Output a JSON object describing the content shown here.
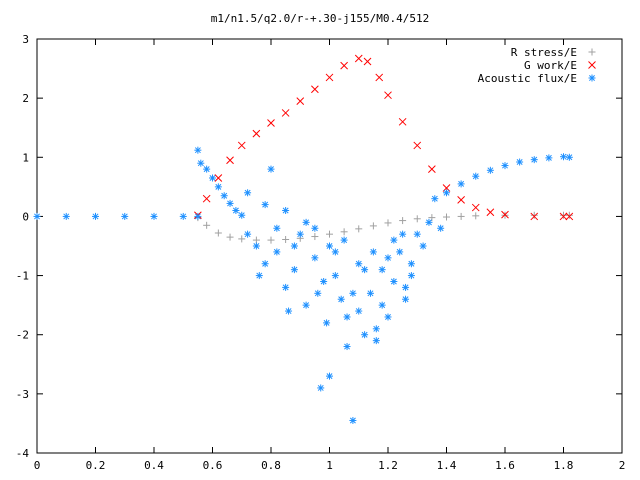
{
  "chart_data": {
    "type": "scatter",
    "title": "m1/n1.5/q2.0/r-+.30-j155/M0.4/512",
    "xlabel": "",
    "ylabel": "",
    "xlim": [
      0,
      2
    ],
    "ylim": [
      -4,
      3
    ],
    "xticks": [
      "0",
      "0.2",
      "0.4",
      "0.6",
      "0.8",
      "1",
      "1.2",
      "1.4",
      "1.6",
      "1.8",
      "2"
    ],
    "yticks": [
      "-4",
      "-3",
      "-2",
      "-1",
      "0",
      "1",
      "2",
      "3"
    ],
    "grid": false,
    "legend_position": "top-right",
    "series": [
      {
        "name": "R stress/E",
        "marker": "plus",
        "color": "#a0a0a0",
        "points": [
          [
            0.55,
            -0.02
          ],
          [
            0.58,
            -0.15
          ],
          [
            0.62,
            -0.28
          ],
          [
            0.66,
            -0.35
          ],
          [
            0.7,
            -0.38
          ],
          [
            0.75,
            -0.4
          ],
          [
            0.8,
            -0.4
          ],
          [
            0.85,
            -0.39
          ],
          [
            0.9,
            -0.37
          ],
          [
            0.95,
            -0.34
          ],
          [
            1.0,
            -0.3
          ],
          [
            1.05,
            -0.26
          ],
          [
            1.1,
            -0.21
          ],
          [
            1.15,
            -0.16
          ],
          [
            1.2,
            -0.11
          ],
          [
            1.25,
            -0.07
          ],
          [
            1.3,
            -0.04
          ],
          [
            1.35,
            -0.02
          ],
          [
            1.4,
            -0.01
          ],
          [
            1.45,
            0.0
          ],
          [
            1.5,
            0.01
          ],
          [
            1.6,
            0.02
          ],
          [
            1.7,
            0.02
          ],
          [
            1.8,
            0.02
          ],
          [
            1.82,
            0.02
          ]
        ]
      },
      {
        "name": "G work/E",
        "marker": "cross",
        "color": "#ff0000",
        "points": [
          [
            0.55,
            0.02
          ],
          [
            0.58,
            0.3
          ],
          [
            0.62,
            0.65
          ],
          [
            0.66,
            0.95
          ],
          [
            0.7,
            1.2
          ],
          [
            0.75,
            1.4
          ],
          [
            0.8,
            1.58
          ],
          [
            0.85,
            1.75
          ],
          [
            0.9,
            1.95
          ],
          [
            0.95,
            2.15
          ],
          [
            1.0,
            2.35
          ],
          [
            1.05,
            2.55
          ],
          [
            1.1,
            2.67
          ],
          [
            1.13,
            2.62
          ],
          [
            1.17,
            2.35
          ],
          [
            1.2,
            2.05
          ],
          [
            1.25,
            1.6
          ],
          [
            1.3,
            1.2
          ],
          [
            1.35,
            0.8
          ],
          [
            1.4,
            0.48
          ],
          [
            1.45,
            0.28
          ],
          [
            1.5,
            0.15
          ],
          [
            1.55,
            0.07
          ],
          [
            1.6,
            0.03
          ],
          [
            1.7,
            0.0
          ],
          [
            1.8,
            0.0
          ],
          [
            1.82,
            0.0
          ]
        ]
      },
      {
        "name": "Acoustic flux/E",
        "marker": "star",
        "color": "#1e90ff",
        "points": [
          [
            0.0,
            0.0
          ],
          [
            0.1,
            0.0
          ],
          [
            0.2,
            0.0
          ],
          [
            0.3,
            0.0
          ],
          [
            0.4,
            0.0
          ],
          [
            0.5,
            0.0
          ],
          [
            0.55,
            0.0
          ],
          [
            0.55,
            1.12
          ],
          [
            0.56,
            0.9
          ],
          [
            0.58,
            0.8
          ],
          [
            0.6,
            0.65
          ],
          [
            0.62,
            0.5
          ],
          [
            0.64,
            0.35
          ],
          [
            0.66,
            0.22
          ],
          [
            0.68,
            0.1
          ],
          [
            0.7,
            0.02
          ],
          [
            1.4,
            0.4
          ],
          [
            1.45,
            0.55
          ],
          [
            1.5,
            0.68
          ],
          [
            1.55,
            0.78
          ],
          [
            1.6,
            0.86
          ],
          [
            1.65,
            0.92
          ],
          [
            1.7,
            0.96
          ],
          [
            1.75,
            0.99
          ],
          [
            1.8,
            1.01
          ],
          [
            1.82,
            1.0
          ],
          [
            0.72,
            0.4
          ],
          [
            0.75,
            -0.5
          ],
          [
            0.78,
            -0.8
          ],
          [
            0.8,
            0.8
          ],
          [
            0.82,
            -0.6
          ],
          [
            0.85,
            -1.2
          ],
          [
            0.88,
            -0.9
          ],
          [
            0.9,
            -0.3
          ],
          [
            0.92,
            -1.5
          ],
          [
            0.95,
            -0.7
          ],
          [
            0.97,
            -2.9
          ],
          [
            0.99,
            -1.8
          ],
          [
            1.0,
            -2.7
          ],
          [
            1.02,
            -1.0
          ],
          [
            1.04,
            -1.4
          ],
          [
            1.06,
            -2.2
          ],
          [
            1.08,
            -3.45
          ],
          [
            1.1,
            -1.6
          ],
          [
            1.12,
            -2.0
          ],
          [
            1.14,
            -1.3
          ],
          [
            1.16,
            -2.1
          ],
          [
            1.18,
            -0.9
          ],
          [
            1.2,
            -1.7
          ],
          [
            1.22,
            -1.1
          ],
          [
            1.24,
            -0.6
          ],
          [
            1.26,
            -1.4
          ],
          [
            1.28,
            -0.8
          ],
          [
            1.3,
            -0.3
          ],
          [
            1.32,
            -0.5
          ],
          [
            1.34,
            -0.1
          ],
          [
            1.36,
            0.3
          ],
          [
            1.38,
            -0.2
          ],
          [
            0.78,
            0.2
          ],
          [
            0.85,
            0.1
          ],
          [
            0.95,
            -0.2
          ],
          [
            1.05,
            -0.4
          ],
          [
            1.15,
            -0.6
          ],
          [
            1.25,
            -0.3
          ],
          [
            0.88,
            -0.5
          ],
          [
            0.98,
            -1.1
          ],
          [
            1.08,
            -1.3
          ],
          [
            1.18,
            -1.5
          ],
          [
            1.28,
            -1.0
          ],
          [
            0.92,
            -0.1
          ],
          [
            1.02,
            -0.6
          ],
          [
            1.12,
            -0.9
          ],
          [
            1.22,
            -0.4
          ],
          [
            0.82,
            -0.2
          ],
          [
            0.72,
            -0.3
          ],
          [
            0.76,
            -1.0
          ],
          [
            0.86,
            -1.6
          ],
          [
            0.96,
            -1.3
          ],
          [
            1.06,
            -1.7
          ],
          [
            1.16,
            -1.9
          ],
          [
            1.26,
            -1.2
          ],
          [
            1.0,
            -0.5
          ],
          [
            1.1,
            -0.8
          ],
          [
            1.2,
            -0.7
          ]
        ]
      }
    ]
  }
}
